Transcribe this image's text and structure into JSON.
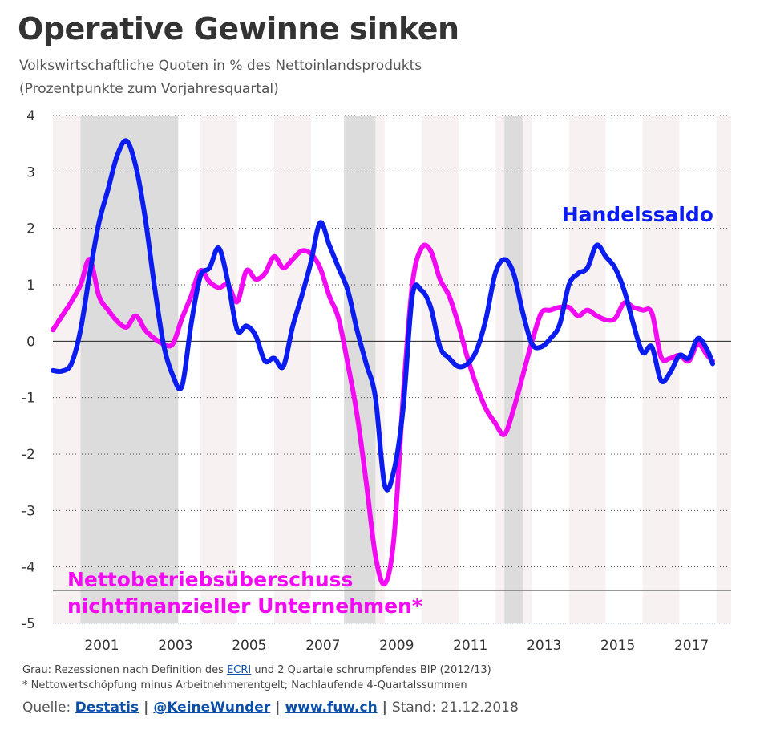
{
  "title": "Operative Gewinne sinken",
  "subtitle1": "Volkswirtschaftliche Quoten in % des Nettoinlandsprodukts",
  "subtitle2": "(Prozentpunkte zum Vorjahresquartal)",
  "footnotes": {
    "line1_pre": "Grau: Rezessionen nach Definition des ",
    "line1_link": "ECRI",
    "line1_post": " und 2 Quartale schrumpfendes BIP (2012/13)",
    "line2": "* Nettowertschöpfung minus Arbeitnehmerentgelt; Nachlaufende 4-Quartalssummen"
  },
  "source": {
    "label": "Quelle:",
    "link1": "Destatis",
    "link2": "@KeineWunder",
    "link3": "www.fuw.ch",
    "stand": "Stand: 21.12.2018"
  },
  "colors": {
    "handelssaldo": "#0a1cf0",
    "betrieb": "#f20af2",
    "recession": "#dcdcdc",
    "stripe": "#f7f2f1"
  },
  "chart_data": {
    "type": "line",
    "title": "Operative Gewinne sinken",
    "ylim": [
      -5,
      4
    ],
    "yticks": [
      "4",
      "3",
      "2",
      "1",
      "0",
      "-1",
      "-2",
      "-3",
      "-4",
      "-5"
    ],
    "xlim": [
      2000.0,
      2018.4
    ],
    "xticks": [
      "2001",
      "2003",
      "2005",
      "2007",
      "2009",
      "2011",
      "2013",
      "2015",
      "2017"
    ],
    "grid": "horizontal dotted",
    "recessions": [
      [
        2000.75,
        2003.4
      ],
      [
        2007.9,
        2008.75
      ],
      [
        2012.25,
        2012.75
      ]
    ],
    "series": [
      {
        "name": "Handelssaldo",
        "color": "#0a1cf0",
        "label_position": "top-right",
        "points": [
          [
            2000.0,
            -0.52
          ],
          [
            2000.25,
            -0.53
          ],
          [
            2000.5,
            -0.4
          ],
          [
            2000.75,
            0.2
          ],
          [
            2001.0,
            1.2
          ],
          [
            2001.25,
            2.1
          ],
          [
            2001.5,
            2.7
          ],
          [
            2001.75,
            3.3
          ],
          [
            2002.0,
            3.55
          ],
          [
            2002.25,
            3.1
          ],
          [
            2002.5,
            2.2
          ],
          [
            2002.75,
            1.0
          ],
          [
            2003.0,
            -0.05
          ],
          [
            2003.25,
            -0.6
          ],
          [
            2003.5,
            -0.8
          ],
          [
            2003.75,
            0.3
          ],
          [
            2004.0,
            1.15
          ],
          [
            2004.25,
            1.3
          ],
          [
            2004.5,
            1.65
          ],
          [
            2004.75,
            1.05
          ],
          [
            2005.0,
            0.2
          ],
          [
            2005.25,
            0.27
          ],
          [
            2005.5,
            0.1
          ],
          [
            2005.75,
            -0.35
          ],
          [
            2006.0,
            -0.3
          ],
          [
            2006.25,
            -0.45
          ],
          [
            2006.5,
            0.25
          ],
          [
            2006.75,
            0.8
          ],
          [
            2007.0,
            1.4
          ],
          [
            2007.25,
            2.1
          ],
          [
            2007.5,
            1.7
          ],
          [
            2007.75,
            1.3
          ],
          [
            2008.0,
            0.9
          ],
          [
            2008.25,
            0.2
          ],
          [
            2008.5,
            -0.4
          ],
          [
            2008.75,
            -1.0
          ],
          [
            2009.0,
            -2.55
          ],
          [
            2009.25,
            -2.3
          ],
          [
            2009.5,
            -1.2
          ],
          [
            2009.75,
            0.8
          ],
          [
            2010.0,
            0.9
          ],
          [
            2010.25,
            0.6
          ],
          [
            2010.5,
            -0.1
          ],
          [
            2010.75,
            -0.3
          ],
          [
            2011.0,
            -0.45
          ],
          [
            2011.25,
            -0.4
          ],
          [
            2011.5,
            -0.15
          ],
          [
            2011.75,
            0.4
          ],
          [
            2012.0,
            1.2
          ],
          [
            2012.25,
            1.45
          ],
          [
            2012.5,
            1.2
          ],
          [
            2012.75,
            0.5
          ],
          [
            2013.0,
            -0.05
          ],
          [
            2013.25,
            -0.1
          ],
          [
            2013.5,
            0.05
          ],
          [
            2013.75,
            0.3
          ],
          [
            2014.0,
            1.0
          ],
          [
            2014.25,
            1.2
          ],
          [
            2014.5,
            1.3
          ],
          [
            2014.75,
            1.7
          ],
          [
            2015.0,
            1.5
          ],
          [
            2015.25,
            1.3
          ],
          [
            2015.5,
            0.9
          ],
          [
            2015.75,
            0.3
          ],
          [
            2016.0,
            -0.2
          ],
          [
            2016.25,
            -0.1
          ],
          [
            2016.5,
            -0.7
          ],
          [
            2016.75,
            -0.55
          ],
          [
            2017.0,
            -0.25
          ],
          [
            2017.25,
            -0.3
          ],
          [
            2017.5,
            0.05
          ],
          [
            2017.75,
            -0.15
          ],
          [
            2017.9,
            -0.4
          ]
        ]
      },
      {
        "name": "Nettobetriebsüberschuss nichtfinanzieller Unternehmen*",
        "color": "#f20af2",
        "label_position": "bottom-left",
        "points": [
          [
            2000.0,
            0.2
          ],
          [
            2000.25,
            0.45
          ],
          [
            2000.5,
            0.7
          ],
          [
            2000.75,
            1.0
          ],
          [
            2001.0,
            1.45
          ],
          [
            2001.25,
            0.8
          ],
          [
            2001.5,
            0.55
          ],
          [
            2001.75,
            0.35
          ],
          [
            2002.0,
            0.25
          ],
          [
            2002.25,
            0.45
          ],
          [
            2002.5,
            0.2
          ],
          [
            2002.75,
            0.05
          ],
          [
            2003.0,
            -0.05
          ],
          [
            2003.25,
            -0.05
          ],
          [
            2003.5,
            0.4
          ],
          [
            2003.75,
            0.8
          ],
          [
            2004.0,
            1.25
          ],
          [
            2004.25,
            1.05
          ],
          [
            2004.5,
            0.95
          ],
          [
            2004.75,
            1.0
          ],
          [
            2005.0,
            0.7
          ],
          [
            2005.25,
            1.25
          ],
          [
            2005.5,
            1.1
          ],
          [
            2005.75,
            1.2
          ],
          [
            2006.0,
            1.5
          ],
          [
            2006.25,
            1.3
          ],
          [
            2006.5,
            1.45
          ],
          [
            2006.75,
            1.6
          ],
          [
            2007.0,
            1.55
          ],
          [
            2007.25,
            1.3
          ],
          [
            2007.5,
            0.8
          ],
          [
            2007.75,
            0.4
          ],
          [
            2008.0,
            -0.4
          ],
          [
            2008.25,
            -1.3
          ],
          [
            2008.5,
            -2.5
          ],
          [
            2008.75,
            -3.8
          ],
          [
            2009.0,
            -4.3
          ],
          [
            2009.25,
            -3.5
          ],
          [
            2009.5,
            -1.0
          ],
          [
            2009.75,
            1.0
          ],
          [
            2010.0,
            1.65
          ],
          [
            2010.25,
            1.6
          ],
          [
            2010.5,
            1.1
          ],
          [
            2010.75,
            0.8
          ],
          [
            2011.0,
            0.3
          ],
          [
            2011.25,
            -0.3
          ],
          [
            2011.5,
            -0.8
          ],
          [
            2011.75,
            -1.2
          ],
          [
            2012.0,
            -1.45
          ],
          [
            2012.25,
            -1.65
          ],
          [
            2012.5,
            -1.2
          ],
          [
            2012.75,
            -0.6
          ],
          [
            2013.0,
            0.0
          ],
          [
            2013.25,
            0.5
          ],
          [
            2013.5,
            0.55
          ],
          [
            2013.75,
            0.6
          ],
          [
            2014.0,
            0.6
          ],
          [
            2014.25,
            0.45
          ],
          [
            2014.5,
            0.55
          ],
          [
            2014.75,
            0.45
          ],
          [
            2015.0,
            0.38
          ],
          [
            2015.25,
            0.4
          ],
          [
            2015.5,
            0.68
          ],
          [
            2015.75,
            0.6
          ],
          [
            2016.0,
            0.55
          ],
          [
            2016.25,
            0.5
          ],
          [
            2016.5,
            -0.28
          ],
          [
            2016.75,
            -0.3
          ],
          [
            2017.0,
            -0.25
          ],
          [
            2017.25,
            -0.35
          ],
          [
            2017.5,
            -0.05
          ],
          [
            2017.75,
            -0.25
          ],
          [
            2017.9,
            -0.35
          ]
        ]
      }
    ]
  }
}
